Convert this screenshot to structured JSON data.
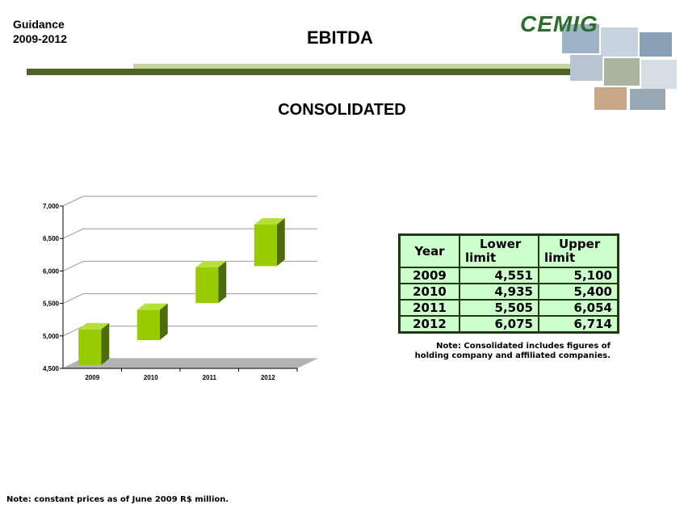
{
  "header": {
    "line1": "Guidance",
    "line2": "2009-2012",
    "title": "EBITDA",
    "logo_text": "CEMIG"
  },
  "subtitle": "CONSOLIDATED",
  "colors": {
    "bar_front": "#99cc00",
    "bar_side": "#4f6b10",
    "bar_top": "#b5e03a",
    "accent_dark": "#4f6228",
    "accent_light": "#c4d79b",
    "table_fill": "#ccffcc"
  },
  "chart_data": {
    "type": "bar",
    "style": "floating-3d-range",
    "categories": [
      "2009",
      "2010",
      "2011",
      "2012"
    ],
    "series": [
      {
        "name": "Lower limit",
        "values": [
          4551,
          4935,
          5505,
          6075
        ]
      },
      {
        "name": "Upper limit",
        "values": [
          5100,
          5400,
          6054,
          6714
        ]
      }
    ],
    "yticks": [
      "4,500",
      "5,000",
      "5,500",
      "6,000",
      "6,500",
      "7,000"
    ],
    "ytick_values": [
      4500,
      5000,
      5500,
      6000,
      6500,
      7000
    ],
    "ylim": [
      4500,
      7000
    ],
    "grid": true,
    "title": "",
    "xlabel": "",
    "ylabel": ""
  },
  "table": {
    "headers": [
      {
        "line1": "Year",
        "line2": ""
      },
      {
        "line1": "Lower",
        "line2": "limit"
      },
      {
        "line1": "Upper",
        "line2": "limit"
      }
    ],
    "rows": [
      [
        "2009",
        "4,551",
        "5,100"
      ],
      [
        "2010",
        "4,935",
        "5,400"
      ],
      [
        "2011",
        "5,505",
        "6,054"
      ],
      [
        "2012",
        "6,075",
        "6,714"
      ]
    ]
  },
  "note_right": {
    "line1": "Note: Consolidated includes figures of",
    "line2": "holding company and affiliated companies."
  },
  "note_bottom": "Note: constant prices as of June 2009 R$ million."
}
